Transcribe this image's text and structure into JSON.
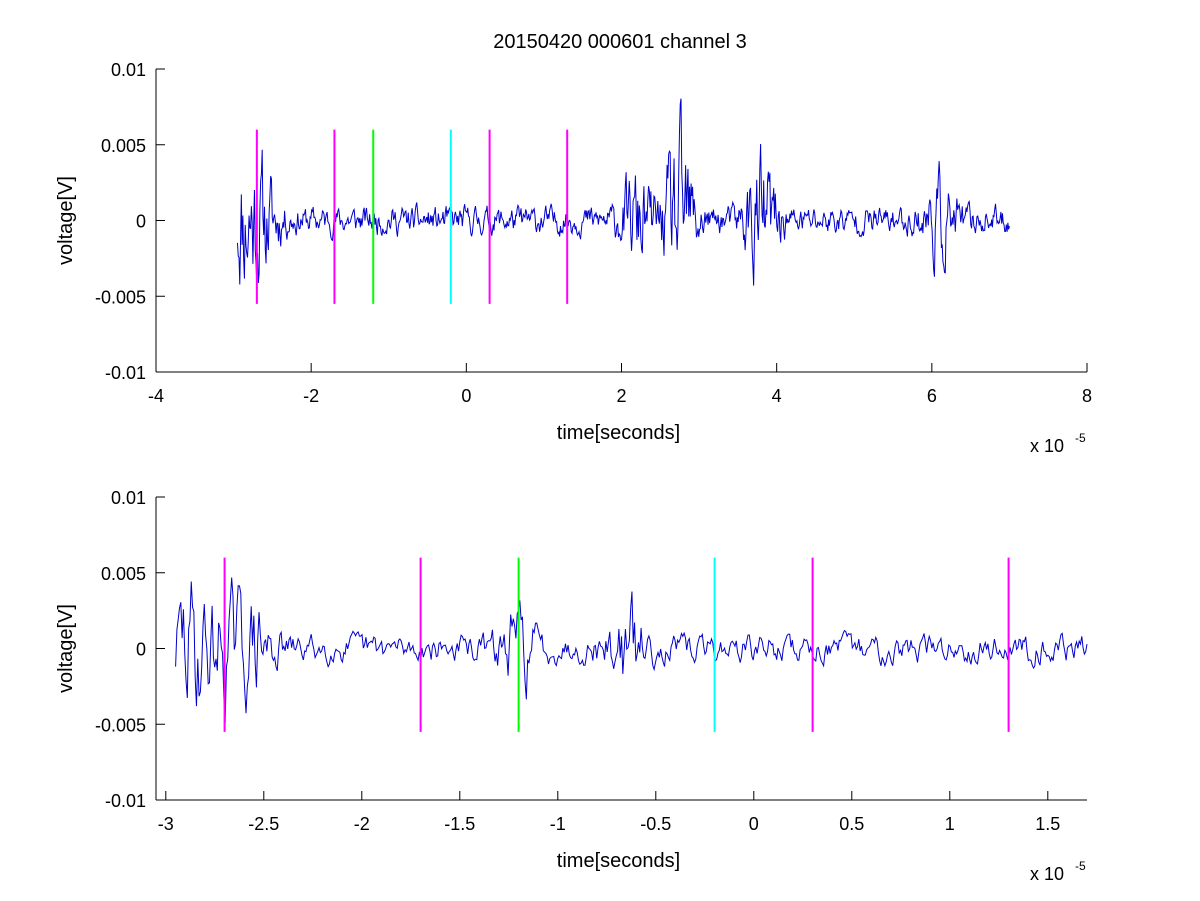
{
  "figure": {
    "title": "20150420 000601 channel 3"
  },
  "colors": {
    "trace": "#0000cc",
    "axes": "#000000",
    "background": "#ffffff"
  },
  "chart_data": [
    {
      "type": "line",
      "title": "20150420 000601 channel 3",
      "xlabel": "time[seconds]",
      "ylabel": "voltage[V]",
      "x_multiplier": "x 10",
      "x_exponent": "-5",
      "xlim": [
        -4,
        8
      ],
      "ylim": [
        -0.01,
        0.01
      ],
      "x_ticks": [
        -4,
        -2,
        0,
        2,
        4,
        6,
        8
      ],
      "x_tick_labels": [
        "-4",
        "-2",
        "0",
        "2",
        "4",
        "6",
        "8"
      ],
      "y_ticks": [
        -0.01,
        -0.005,
        0,
        0.005,
        0.01
      ],
      "y_tick_labels": [
        "-0.01",
        "-0.005",
        "0",
        "0.005",
        "0.01"
      ],
      "grid": false,
      "series": [
        {
          "style": "noise",
          "color": "#0000cc",
          "x_range": [
            -2.95,
            7.0
          ],
          "num_samples": 1000,
          "seed": 11,
          "base_amplitude": 0.0009,
          "bursts": [
            {
              "x": -2.85,
              "amp": 0.0038
            },
            {
              "x": -2.6,
              "amp": 0.0022
            },
            {
              "x": 2.2,
              "amp": 0.0025
            },
            {
              "x": 2.75,
              "amp": 0.0048
            },
            {
              "x": 3.8,
              "amp": 0.0038
            },
            {
              "x": 6.1,
              "amp": 0.0022
            }
          ]
        }
      ],
      "markers": [
        {
          "x": -2.7,
          "color": "#ff00ff",
          "y_range": [
            -0.0055,
            0.006
          ]
        },
        {
          "x": -1.7,
          "color": "#ff00ff",
          "y_range": [
            -0.0055,
            0.006
          ]
        },
        {
          "x": -1.2,
          "color": "#00ff00",
          "y_range": [
            -0.0055,
            0.006
          ]
        },
        {
          "x": -0.2,
          "color": "#00ffff",
          "y_range": [
            -0.0055,
            0.006
          ]
        },
        {
          "x": 0.3,
          "color": "#ff00ff",
          "y_range": [
            -0.0055,
            0.006
          ]
        },
        {
          "x": 1.3,
          "color": "#ff00ff",
          "y_range": [
            -0.0055,
            0.006
          ]
        }
      ]
    },
    {
      "type": "line",
      "title": "",
      "xlabel": "time[seconds]",
      "ylabel": "voltage[V]",
      "x_multiplier": "x 10",
      "x_exponent": "-5",
      "xlim": [
        -3.05,
        1.7
      ],
      "ylim": [
        -0.01,
        0.01
      ],
      "x_ticks": [
        -3,
        -2.5,
        -2,
        -1.5,
        -1,
        -0.5,
        0,
        0.5,
        1,
        1.5
      ],
      "x_tick_labels": [
        "-3",
        "-2.5",
        "-2",
        "-1.5",
        "-1",
        "-0.5",
        "0",
        "0.5",
        "1",
        "1.5"
      ],
      "y_ticks": [
        -0.01,
        -0.005,
        0,
        0.005,
        0.01
      ],
      "y_tick_labels": [
        "-0.01",
        "-0.005",
        "0",
        "0.005",
        "0.01"
      ],
      "grid": false,
      "series": [
        {
          "style": "noise",
          "color": "#0000cc",
          "x_range": [
            -2.95,
            1.7
          ],
          "num_samples": 700,
          "seed": 29,
          "base_amplitude": 0.0009,
          "bursts": [
            {
              "x": -2.88,
              "amp": 0.0042
            },
            {
              "x": -2.7,
              "amp": 0.003
            },
            {
              "x": -2.55,
              "amp": 0.0025
            },
            {
              "x": -1.2,
              "amp": 0.0022
            },
            {
              "x": -0.65,
              "amp": 0.0025
            }
          ]
        }
      ],
      "markers": [
        {
          "x": -2.7,
          "color": "#ff00ff",
          "y_range": [
            -0.0055,
            0.006
          ]
        },
        {
          "x": -1.7,
          "color": "#ff00ff",
          "y_range": [
            -0.0055,
            0.006
          ]
        },
        {
          "x": -1.2,
          "color": "#00ff00",
          "y_range": [
            -0.0055,
            0.006
          ]
        },
        {
          "x": -0.2,
          "color": "#00ffff",
          "y_range": [
            -0.0055,
            0.006
          ]
        },
        {
          "x": 0.3,
          "color": "#ff00ff",
          "y_range": [
            -0.0055,
            0.006
          ]
        },
        {
          "x": 1.3,
          "color": "#ff00ff",
          "y_range": [
            -0.0055,
            0.006
          ]
        }
      ]
    }
  ]
}
